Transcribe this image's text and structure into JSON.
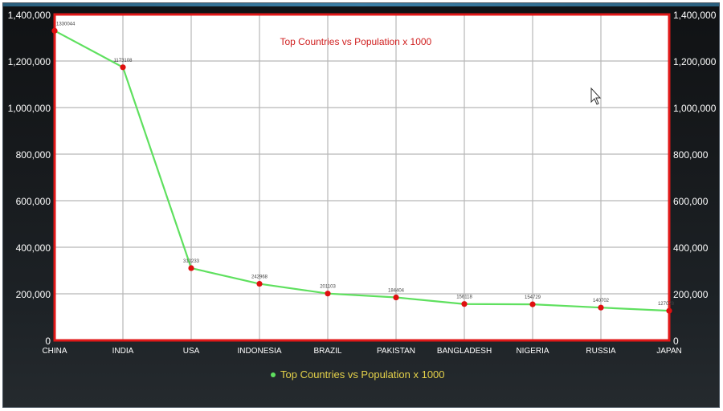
{
  "chart_data": {
    "type": "line",
    "title": "Top Countries vs Population x 1000",
    "categories": [
      "CHINA",
      "INDIA",
      "USA",
      "INDONESIA",
      "BRAZIL",
      "PAKISTAN",
      "BANGLADESH",
      "NIGERIA",
      "RUSSIA",
      "JAPAN"
    ],
    "series": [
      {
        "name": "Top Countries vs Population x 1000",
        "values": [
          1330044,
          1173108,
          310233,
          242968,
          201103,
          184404,
          156118,
          154729,
          140702,
          127078
        ]
      }
    ],
    "data_labels": [
      "1330044",
      "1173108",
      "310233",
      "242968",
      "201103",
      "184404",
      "156118",
      "154729",
      "140702",
      "127078"
    ],
    "ylim": [
      0,
      1400000
    ],
    "yticks": [
      "0",
      "200,000",
      "400,000",
      "600,000",
      "800,000",
      "1,000,000",
      "1,200,000",
      "1,400,000"
    ],
    "ytick_values": [
      0,
      200000,
      400000,
      600000,
      800000,
      1000000,
      1200000,
      1400000
    ],
    "grid": true,
    "legend_position": "bottom-center",
    "colors": {
      "line": "#5fe05f",
      "marker": "#e01010",
      "frame": "#e01818",
      "title": "#d02020",
      "legend_text": "#e5d24a",
      "axis_text": "#ffffff",
      "grid": "#b8b8b8",
      "plot_bg": "#ffffff"
    }
  }
}
